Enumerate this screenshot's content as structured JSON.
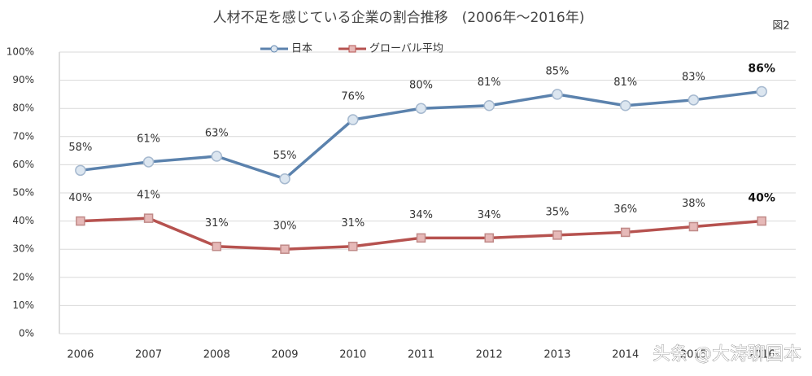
{
  "chart_data": {
    "type": "line",
    "title": "人材不足を感じている企業の割合推移　(2006年～2016年)",
    "figure_label": "図2",
    "watermark": "头条 @大涛聊国本",
    "categories": [
      "2006",
      "2007",
      "2008",
      "2009",
      "2010",
      "2011",
      "2012",
      "2013",
      "2014",
      "2015",
      "2016"
    ],
    "series": [
      {
        "name": "日本",
        "color": "#5b82ad",
        "values": [
          58,
          61,
          63,
          55,
          76,
          80,
          81,
          85,
          81,
          83,
          86
        ],
        "value_labels": [
          "58%",
          "61%",
          "63%",
          "55%",
          "76%",
          "80%",
          "81%",
          "85%",
          "81%",
          "83%",
          "86%"
        ]
      },
      {
        "name": "グローバル平均",
        "color": "#b6524f",
        "values": [
          40,
          41,
          31,
          30,
          31,
          34,
          34,
          35,
          36,
          38,
          40
        ],
        "value_labels": [
          "40%",
          "41%",
          "31%",
          "30%",
          "31%",
          "34%",
          "34%",
          "35%",
          "36%",
          "38%",
          "40%"
        ]
      }
    ],
    "ylim": [
      0,
      100
    ],
    "yticks": [
      {
        "value": 0,
        "label": "0%"
      },
      {
        "value": 10,
        "label": "10%"
      },
      {
        "value": 20,
        "label": "20%"
      },
      {
        "value": 30,
        "label": "30%"
      },
      {
        "value": 40,
        "label": "40%"
      },
      {
        "value": 50,
        "label": "50%"
      },
      {
        "value": 60,
        "label": "60%"
      },
      {
        "value": 70,
        "label": "70%"
      },
      {
        "value": 80,
        "label": "80%"
      },
      {
        "value": 90,
        "label": "90%"
      },
      {
        "value": 100,
        "label": "100%"
      }
    ],
    "grid": true
  }
}
